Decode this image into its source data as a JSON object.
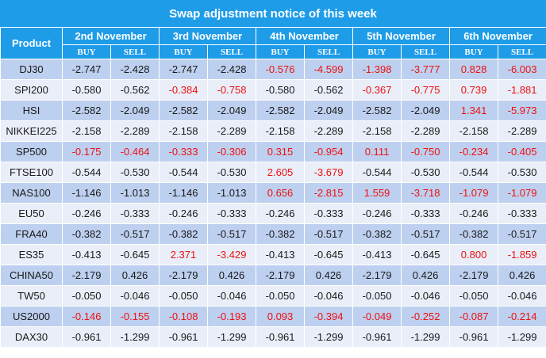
{
  "title": "Swap adjustment notice of this week",
  "product_header": "Product",
  "days": [
    "2nd  November",
    "3rd  November",
    "4th November",
    "5th November",
    "6th November"
  ],
  "buy_label": "BUY",
  "sell_label": "SELL",
  "colors": {
    "header_bg": "#1e9ce8",
    "row_odd": "#bed0ef",
    "row_even": "#e9eef8",
    "highlight_text": "#ee1111"
  },
  "rows": [
    {
      "product": "DJ30",
      "values": [
        "-2.747",
        "-2.428",
        "-2.747",
        "-2.428",
        "-0.576",
        "-4.599",
        "-1.398",
        "-3.777",
        "0.828",
        "-6.003"
      ],
      "red": [
        false,
        false,
        false,
        false,
        true,
        true,
        true,
        true,
        true,
        true
      ]
    },
    {
      "product": "SPI200",
      "values": [
        "-0.580",
        "-0.562",
        "-0.384",
        "-0.758",
        "-0.580",
        "-0.562",
        "-0.367",
        "-0.775",
        "0.739",
        "-1.881"
      ],
      "red": [
        false,
        false,
        true,
        true,
        false,
        false,
        true,
        true,
        true,
        true
      ]
    },
    {
      "product": "HSI",
      "values": [
        "-2.582",
        "-2.049",
        "-2.582",
        "-2.049",
        "-2.582",
        "-2.049",
        "-2.582",
        "-2.049",
        "1.341",
        "-5.973"
      ],
      "red": [
        false,
        false,
        false,
        false,
        false,
        false,
        false,
        false,
        true,
        true
      ]
    },
    {
      "product": "NIKKEI225",
      "values": [
        "-2.158",
        "-2.289",
        "-2.158",
        "-2.289",
        "-2.158",
        "-2.289",
        "-2.158",
        "-2.289",
        "-2.158",
        "-2.289"
      ],
      "red": [
        false,
        false,
        false,
        false,
        false,
        false,
        false,
        false,
        false,
        false
      ]
    },
    {
      "product": "SP500",
      "values": [
        "-0.175",
        "-0.464",
        "-0.333",
        "-0.306",
        "0.315",
        "-0.954",
        "0.111",
        "-0.750",
        "-0.234",
        "-0.405"
      ],
      "red": [
        true,
        true,
        true,
        true,
        true,
        true,
        true,
        true,
        true,
        true
      ]
    },
    {
      "product": "FTSE100",
      "values": [
        "-0.544",
        "-0.530",
        "-0.544",
        "-0.530",
        "2.605",
        "-3.679",
        "-0.544",
        "-0.530",
        "-0.544",
        "-0.530"
      ],
      "red": [
        false,
        false,
        false,
        false,
        true,
        true,
        false,
        false,
        false,
        false
      ]
    },
    {
      "product": "NAS100",
      "values": [
        "-1.146",
        "-1.013",
        "-1.146",
        "-1.013",
        "0.656",
        "-2.815",
        "1.559",
        "-3.718",
        "-1.079",
        "-1.079"
      ],
      "red": [
        false,
        false,
        false,
        false,
        true,
        true,
        true,
        true,
        true,
        true
      ]
    },
    {
      "product": "EU50",
      "values": [
        "-0.246",
        "-0.333",
        "-0.246",
        "-0.333",
        "-0.246",
        "-0.333",
        "-0.246",
        "-0.333",
        "-0.246",
        "-0.333"
      ],
      "red": [
        false,
        false,
        false,
        false,
        false,
        false,
        false,
        false,
        false,
        false
      ]
    },
    {
      "product": "FRA40",
      "values": [
        "-0.382",
        "-0.517",
        "-0.382",
        "-0.517",
        "-0.382",
        "-0.517",
        "-0.382",
        "-0.517",
        "-0.382",
        "-0.517"
      ],
      "red": [
        false,
        false,
        false,
        false,
        false,
        false,
        false,
        false,
        false,
        false
      ]
    },
    {
      "product": "ES35",
      "values": [
        "-0.413",
        "-0.645",
        "2.371",
        "-3.429",
        "-0.413",
        "-0.645",
        "-0.413",
        "-0.645",
        "0.800",
        "-1.859"
      ],
      "red": [
        false,
        false,
        true,
        true,
        false,
        false,
        false,
        false,
        true,
        true
      ]
    },
    {
      "product": "CHINA50",
      "values": [
        "-2.179",
        "0.426",
        "-2.179",
        "0.426",
        "-2.179",
        "0.426",
        "-2.179",
        "0.426",
        "-2.179",
        "0.426"
      ],
      "red": [
        false,
        false,
        false,
        false,
        false,
        false,
        false,
        false,
        false,
        false
      ]
    },
    {
      "product": "TW50",
      "values": [
        "-0.050",
        "-0.046",
        "-0.050",
        "-0.046",
        "-0.050",
        "-0.046",
        "-0.050",
        "-0.046",
        "-0.050",
        "-0.046"
      ],
      "red": [
        false,
        false,
        false,
        false,
        false,
        false,
        false,
        false,
        false,
        false
      ]
    },
    {
      "product": "US2000",
      "values": [
        "-0.146",
        "-0.155",
        "-0.108",
        "-0.193",
        "0.093",
        "-0.394",
        "-0.049",
        "-0.252",
        "-0.087",
        "-0.214"
      ],
      "red": [
        true,
        true,
        true,
        true,
        true,
        true,
        true,
        true,
        true,
        true
      ]
    },
    {
      "product": "DAX30",
      "values": [
        "-0.961",
        "-1.299",
        "-0.961",
        "-1.299",
        "-0.961",
        "-1.299",
        "-0.961",
        "-1.299",
        "-0.961",
        "-1.299"
      ],
      "red": [
        false,
        false,
        false,
        false,
        false,
        false,
        false,
        false,
        false,
        false
      ]
    }
  ]
}
